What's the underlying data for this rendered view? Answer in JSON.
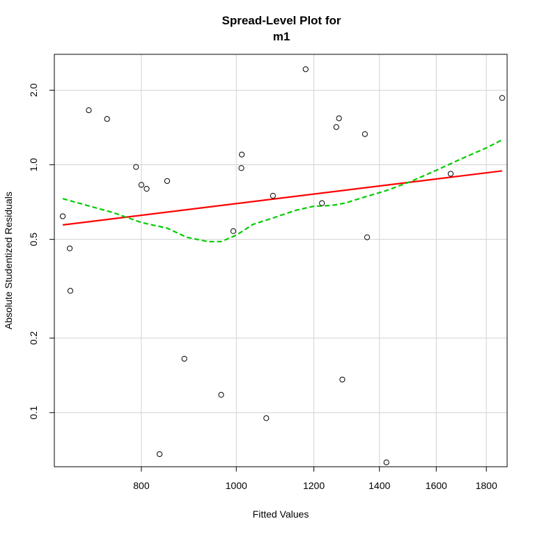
{
  "chart_data": {
    "type": "scatter",
    "title_lines": [
      "Spread-Level Plot for",
      "m1"
    ],
    "xlabel": "Fitted Values",
    "ylabel": "Absolute Studentized Residuals",
    "x_scale": "log",
    "y_scale": "log",
    "xlim": [
      652,
      1890
    ],
    "ylim": [
      0.0605,
      2.79
    ],
    "x_ticks": [
      800,
      1000,
      1200,
      1400,
      1600,
      1800
    ],
    "x_tick_labels": [
      "800",
      "1000",
      "1200",
      "1400",
      "1600",
      "1800"
    ],
    "y_ticks": [
      0.1,
      0.2,
      0.5,
      1.0,
      2.0
    ],
    "y_tick_labels": [
      "0.1",
      "0.2",
      "0.5",
      "1.0",
      "2.0"
    ],
    "grid": true,
    "points": [
      {
        "x": 665,
        "y": 0.62
      },
      {
        "x": 676,
        "y": 0.46
      },
      {
        "x": 677,
        "y": 0.31
      },
      {
        "x": 707,
        "y": 1.66
      },
      {
        "x": 738,
        "y": 1.53
      },
      {
        "x": 790,
        "y": 0.98
      },
      {
        "x": 800,
        "y": 0.83
      },
      {
        "x": 810,
        "y": 0.8
      },
      {
        "x": 835,
        "y": 0.068
      },
      {
        "x": 850,
        "y": 0.86
      },
      {
        "x": 885,
        "y": 0.165
      },
      {
        "x": 965,
        "y": 0.118
      },
      {
        "x": 993,
        "y": 0.54
      },
      {
        "x": 1012,
        "y": 0.97
      },
      {
        "x": 1013,
        "y": 1.1
      },
      {
        "x": 1073,
        "y": 0.095
      },
      {
        "x": 1090,
        "y": 0.75
      },
      {
        "x": 1177,
        "y": 2.43
      },
      {
        "x": 1223,
        "y": 0.7
      },
      {
        "x": 1265,
        "y": 1.42
      },
      {
        "x": 1273,
        "y": 1.54
      },
      {
        "x": 1283,
        "y": 0.136
      },
      {
        "x": 1353,
        "y": 1.33
      },
      {
        "x": 1360,
        "y": 0.51
      },
      {
        "x": 1423,
        "y": 0.063
      },
      {
        "x": 1655,
        "y": 0.92
      },
      {
        "x": 1868,
        "y": 1.86
      }
    ],
    "series": [
      {
        "type": "fit-line",
        "color": "#ff0000",
        "style": "solid",
        "x": [
          665,
          1868
        ],
        "y": [
          0.572,
          0.945
        ]
      },
      {
        "type": "smooth",
        "color": "#00cc00",
        "style": "dashed",
        "x": [
          665,
          700,
          750,
          800,
          850,
          890,
          935,
          965,
          1000,
          1040,
          1090,
          1150,
          1200,
          1250,
          1290,
          1350,
          1420,
          1500,
          1600,
          1700,
          1800,
          1868
        ],
        "y": [
          0.73,
          0.69,
          0.64,
          0.585,
          0.555,
          0.51,
          0.49,
          0.49,
          0.52,
          0.575,
          0.61,
          0.655,
          0.68,
          0.685,
          0.7,
          0.74,
          0.785,
          0.85,
          0.95,
          1.06,
          1.17,
          1.26
        ]
      }
    ]
  }
}
